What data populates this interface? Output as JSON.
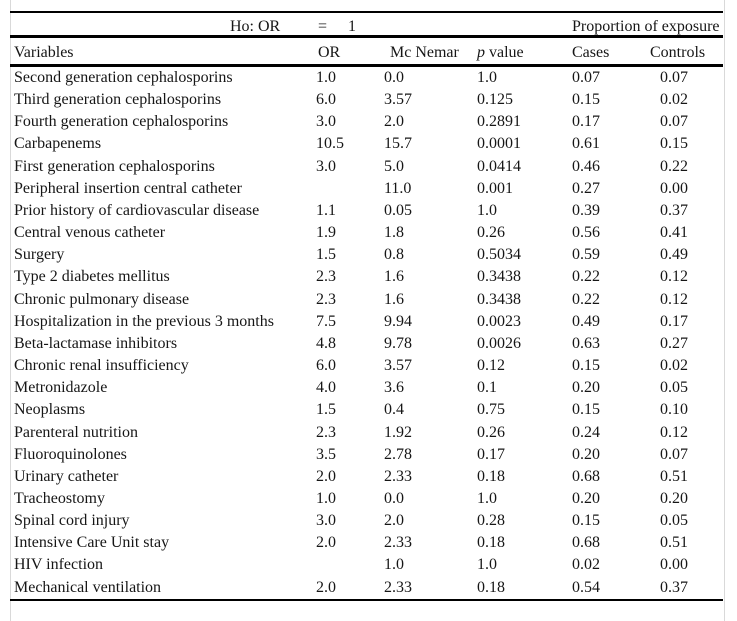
{
  "header_band": {
    "hypothesis": {
      "left": "Ho: OR",
      "operator": "=",
      "value": "1"
    },
    "proportion_label": "Proportion of exposure"
  },
  "columns": {
    "variables": "Variables",
    "or": "OR",
    "mcnemar": "Mc Nemar",
    "p_italic": "p",
    "p_rest": "value",
    "cases": "Cases",
    "controls": "Controls"
  },
  "rows": [
    {
      "variable": "Second generation cephalosporins",
      "or": "1.0",
      "mcnemar": "0.0",
      "p_value": "1.0",
      "cases": "0.07",
      "controls": "0.07"
    },
    {
      "variable": "Third generation cephalosporins",
      "or": "6.0",
      "mcnemar": "3.57",
      "p_value": "0.125",
      "cases": "0.15",
      "controls": "0.02"
    },
    {
      "variable": "Fourth generation cephalosporins",
      "or": "3.0",
      "mcnemar": "2.0",
      "p_value": "0.2891",
      "cases": "0.17",
      "controls": "0.07"
    },
    {
      "variable": "Carbapenems",
      "or": "10.5",
      "mcnemar": "15.7",
      "p_value": "0.0001",
      "cases": "0.61",
      "controls": "0.15"
    },
    {
      "variable": "First generation cephalosporins",
      "or": "3.0",
      "mcnemar": "5.0",
      "p_value": "0.0414",
      "cases": "0.46",
      "controls": "0.22"
    },
    {
      "variable": "Peripheral insertion central catheter",
      "or": "",
      "mcnemar": "11.0",
      "p_value": "0.001",
      "cases": "0.27",
      "controls": "0.00"
    },
    {
      "variable": "Prior history of cardiovascular disease",
      "or": "1.1",
      "mcnemar": "0.05",
      "p_value": "1.0",
      "cases": "0.39",
      "controls": "0.37"
    },
    {
      "variable": "Central venous catheter",
      "or": "1.9",
      "mcnemar": "1.8",
      "p_value": "0.26",
      "cases": "0.56",
      "controls": "0.41"
    },
    {
      "variable": "Surgery",
      "or": "1.5",
      "mcnemar": "0.8",
      "p_value": "0.5034",
      "cases": "0.59",
      "controls": "0.49"
    },
    {
      "variable": "Type 2 diabetes mellitus",
      "or": "2.3",
      "mcnemar": "1.6",
      "p_value": "0.3438",
      "cases": "0.22",
      "controls": "0.12"
    },
    {
      "variable": "Chronic pulmonary disease",
      "or": "2.3",
      "mcnemar": "1.6",
      "p_value": "0.3438",
      "cases": "0.22",
      "controls": "0.12"
    },
    {
      "variable": "Hospitalization in the previous 3 months",
      "or": "7.5",
      "mcnemar": "9.94",
      "p_value": "0.0023",
      "cases": "0.49",
      "controls": "0.17"
    },
    {
      "variable": "Beta-lactamase inhibitors",
      "or": "4.8",
      "mcnemar": "9.78",
      "p_value": "0.0026",
      "cases": "0.63",
      "controls": "0.27"
    },
    {
      "variable": "Chronic renal insufficiency",
      "or": "6.0",
      "mcnemar": "3.57",
      "p_value": "0.12",
      "cases": "0.15",
      "controls": "0.02"
    },
    {
      "variable": "Metronidazole",
      "or": "4.0",
      "mcnemar": "3.6",
      "p_value": "0.1",
      "cases": "0.20",
      "controls": "0.05"
    },
    {
      "variable": "Neoplasms",
      "or": "1.5",
      "mcnemar": "0.4",
      "p_value": "0.75",
      "cases": "0.15",
      "controls": "0.10"
    },
    {
      "variable": "Parenteral nutrition",
      "or": "2.3",
      "mcnemar": "1.92",
      "p_value": "0.26",
      "cases": "0.24",
      "controls": "0.12"
    },
    {
      "variable": "Fluoroquinolones",
      "or": "3.5",
      "mcnemar": "2.78",
      "p_value": "0.17",
      "cases": "0.20",
      "controls": "0.07"
    },
    {
      "variable": "Urinary catheter",
      "or": "2.0",
      "mcnemar": "2.33",
      "p_value": "0.18",
      "cases": "0.68",
      "controls": "0.51"
    },
    {
      "variable": "Tracheostomy",
      "or": "1.0",
      "mcnemar": "0.0",
      "p_value": "1.0",
      "cases": "0.20",
      "controls": "0.20"
    },
    {
      "variable": "Spinal cord injury",
      "or": "3.0",
      "mcnemar": "2.0",
      "p_value": "0.28",
      "cases": "0.15",
      "controls": "0.05"
    },
    {
      "variable": "Intensive Care Unit stay",
      "or": "2.0",
      "mcnemar": "2.33",
      "p_value": "0.18",
      "cases": "0.68",
      "controls": "0.51"
    },
    {
      "variable": "HIV infection",
      "or": "",
      "mcnemar": "1.0",
      "p_value": "1.0",
      "cases": "0.02",
      "controls": "0.00"
    },
    {
      "variable": "Mechanical ventilation",
      "or": "2.0",
      "mcnemar": "2.33",
      "p_value": "0.18",
      "cases": "0.54",
      "controls": "0.37"
    }
  ],
  "colors": {
    "rule": "#000000",
    "text": "#161616",
    "side_border": "#d9d9d9",
    "background": "#ffffff"
  }
}
